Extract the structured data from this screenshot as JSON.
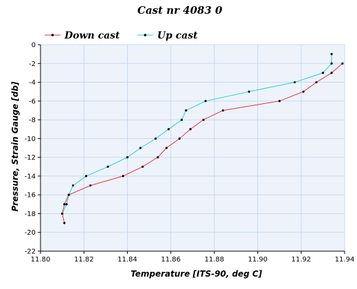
{
  "chart_data": {
    "type": "line",
    "title": "Cast nr 4083 0",
    "xlabel": "Temperature [ITS-90, deg C]",
    "ylabel": "Pressure, Strain Gauge [db]",
    "xlim": [
      11.8,
      11.94
    ],
    "ylim": [
      -22,
      0
    ],
    "xticks": [
      "11.80",
      "11.82",
      "11.84",
      "11.86",
      "11.88",
      "11.90",
      "11.92",
      "11.94"
    ],
    "yticks": [
      "0",
      "-2",
      "-4",
      "-6",
      "-8",
      "-10",
      "-12",
      "-14",
      "-16",
      "-18",
      "-20",
      "-22"
    ],
    "grid": true,
    "legend_placement": "top",
    "plot_background": "#eef3fb",
    "series": [
      {
        "name": "Down cast",
        "color": "#e8303a",
        "marker_color": "#000000",
        "points": [
          [
            11.939,
            -2.0
          ],
          [
            11.934,
            -3.0
          ],
          [
            11.927,
            -4.0
          ],
          [
            11.921,
            -5.0
          ],
          [
            11.91,
            -6.0
          ],
          [
            11.884,
            -7.0
          ],
          [
            11.875,
            -8.0
          ],
          [
            11.869,
            -9.0
          ],
          [
            11.864,
            -10.0
          ],
          [
            11.858,
            -11.0
          ],
          [
            11.854,
            -12.0
          ],
          [
            11.847,
            -13.0
          ],
          [
            11.838,
            -14.0
          ],
          [
            11.823,
            -15.0
          ],
          [
            11.813,
            -16.0
          ],
          [
            11.811,
            -17.0
          ],
          [
            11.81,
            -18.0
          ],
          [
            11.811,
            -19.0
          ]
        ]
      },
      {
        "name": "Up cast",
        "color": "#19d3d3",
        "marker_color": "#000000",
        "points": [
          [
            11.934,
            -1.0
          ],
          [
            11.934,
            -2.0
          ],
          [
            11.93,
            -3.0
          ],
          [
            11.917,
            -4.0
          ],
          [
            11.896,
            -5.0
          ],
          [
            11.876,
            -6.0
          ],
          [
            11.867,
            -7.0
          ],
          [
            11.865,
            -8.0
          ],
          [
            11.859,
            -9.0
          ],
          [
            11.853,
            -10.0
          ],
          [
            11.846,
            -11.0
          ],
          [
            11.84,
            -12.0
          ],
          [
            11.831,
            -13.0
          ],
          [
            11.821,
            -14.0
          ],
          [
            11.815,
            -15.0
          ],
          [
            11.813,
            -16.0
          ],
          [
            11.812,
            -17.0
          ],
          [
            11.81,
            -18.0
          ]
        ]
      }
    ]
  }
}
